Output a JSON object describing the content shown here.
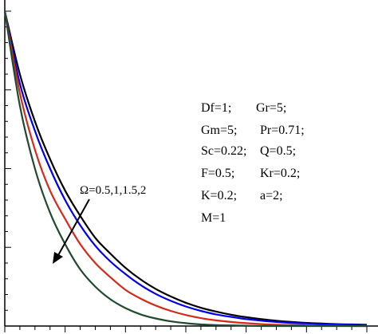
{
  "chart_data": {
    "type": "line",
    "title": "",
    "xlabel": "",
    "ylabel": "",
    "xlim": [
      0,
      6
    ],
    "ylim": [
      0,
      1
    ],
    "grid": false,
    "x": [
      0,
      0.25,
      0.5,
      0.75,
      1,
      1.25,
      1.5,
      1.75,
      2,
      2.25,
      2.5,
      2.75,
      3,
      3.25,
      3.5,
      3.75,
      4,
      4.25,
      4.5,
      4.75,
      5,
      5.25,
      5.5,
      5.75,
      6
    ],
    "series": [
      {
        "color": "#000000",
        "values": [
          1,
          0.8,
          0.65,
          0.53,
          0.43,
          0.35,
          0.28,
          0.23,
          0.185,
          0.148,
          0.118,
          0.094,
          0.074,
          0.058,
          0.046,
          0.036,
          0.028,
          0.022,
          0.017,
          0.013,
          0.01,
          0.008,
          0.006,
          0.005,
          0.004
        ]
      },
      {
        "color": "#0000ee",
        "values": [
          1,
          0.77,
          0.62,
          0.5,
          0.4,
          0.32,
          0.255,
          0.205,
          0.165,
          0.13,
          0.102,
          0.08,
          0.062,
          0.048,
          0.037,
          0.029,
          0.022,
          0.017,
          0.013,
          0.01,
          0.008,
          0.006,
          0.005,
          0.004,
          0.003
        ]
      },
      {
        "color": "#d42a1a",
        "values": [
          1,
          0.74,
          0.56,
          0.43,
          0.34,
          0.26,
          0.2,
          0.155,
          0.115,
          0.087,
          0.065,
          0.048,
          0.035,
          0.025,
          0.018,
          0.013,
          0.009,
          0.006,
          0.004,
          0.003,
          0.002,
          0.001,
          0.001,
          0,
          0
        ]
      },
      {
        "color": "#1f4a30",
        "values": [
          1,
          0.7,
          0.5,
          0.36,
          0.26,
          0.18,
          0.125,
          0.085,
          0.057,
          0.037,
          0.024,
          0.015,
          0.009,
          0.005,
          0.003,
          0.002,
          0.001,
          0,
          0,
          0,
          0,
          0,
          0,
          0,
          0
        ]
      }
    ],
    "annotation": {
      "text": "Ω=0.5,1,1.5,2"
    },
    "params": [
      "Df=1;",
      "Gr=5;",
      "Gm=5;",
      "Pr=0.71;",
      "Sc=0.22;",
      "Q=0.5;",
      "F=0.5;",
      "Kr=0.2;",
      "K=0.2;",
      "a=2;",
      "M=1"
    ]
  }
}
